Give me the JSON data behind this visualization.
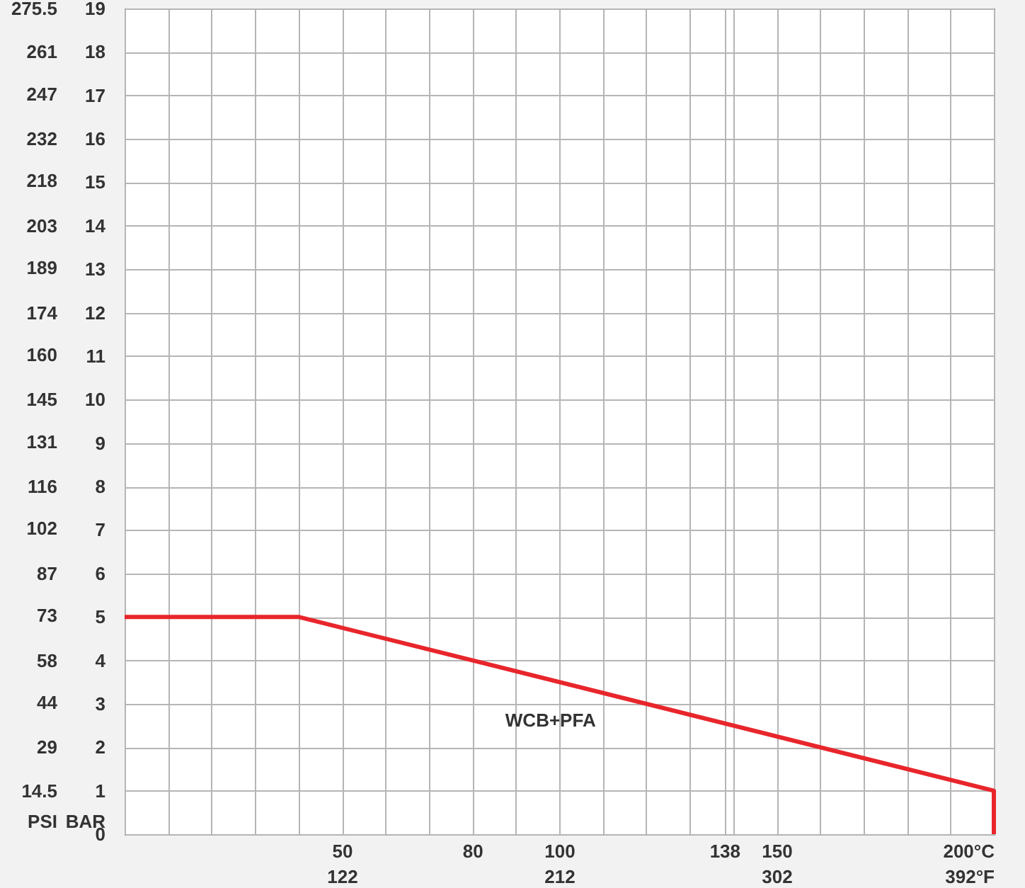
{
  "chart_data": {
    "type": "line",
    "ylabel": "BAR",
    "y2label": "PSI",
    "grid": true,
    "x": [
      0,
      40,
      200,
      200
    ],
    "series": [
      {
        "name": "WCB+PFA",
        "color": "#e8262b",
        "values": [
          5,
          5,
          1,
          0
        ]
      }
    ],
    "xlim": [
      0,
      200
    ],
    "xticks": [
      {
        "value": 0,
        "label": null
      },
      {
        "value": 10,
        "label": null
      },
      {
        "value": 20,
        "label": null
      },
      {
        "value": 30,
        "label": null
      },
      {
        "value": 40,
        "label": null
      },
      50,
      {
        "value": 60,
        "label": null
      },
      {
        "value": 70,
        "label": null
      },
      80,
      {
        "value": 90,
        "label": null
      },
      100,
      {
        "value": 110,
        "label": null
      },
      {
        "value": 120,
        "label": null
      },
      {
        "value": 130,
        "label": null
      },
      138,
      {
        "value": 140,
        "label": null
      },
      150,
      {
        "value": 160,
        "label": null
      },
      {
        "value": 170,
        "label": null
      },
      {
        "value": 180,
        "label": null
      },
      {
        "value": 190,
        "label": null
      },
      {
        "value": 200,
        "label": "200°C"
      }
    ],
    "x2lim": [
      32,
      392
    ],
    "x2ticks": [
      122,
      212,
      302,
      {
        "value": 392,
        "label": "392°F"
      }
    ],
    "ylim": [
      0,
      19
    ],
    "yticks": [
      0,
      1,
      2,
      3,
      4,
      5,
      6,
      7,
      8,
      9,
      10,
      11,
      12,
      13,
      14,
      15,
      16,
      17,
      18,
      19
    ],
    "y2lim": [
      0,
      275.5
    ],
    "y2ticks": [
      14.5,
      29,
      44,
      58,
      73,
      87,
      102,
      116,
      131,
      145,
      160,
      174,
      189,
      203,
      218,
      232,
      247,
      261,
      275.5
    ]
  }
}
